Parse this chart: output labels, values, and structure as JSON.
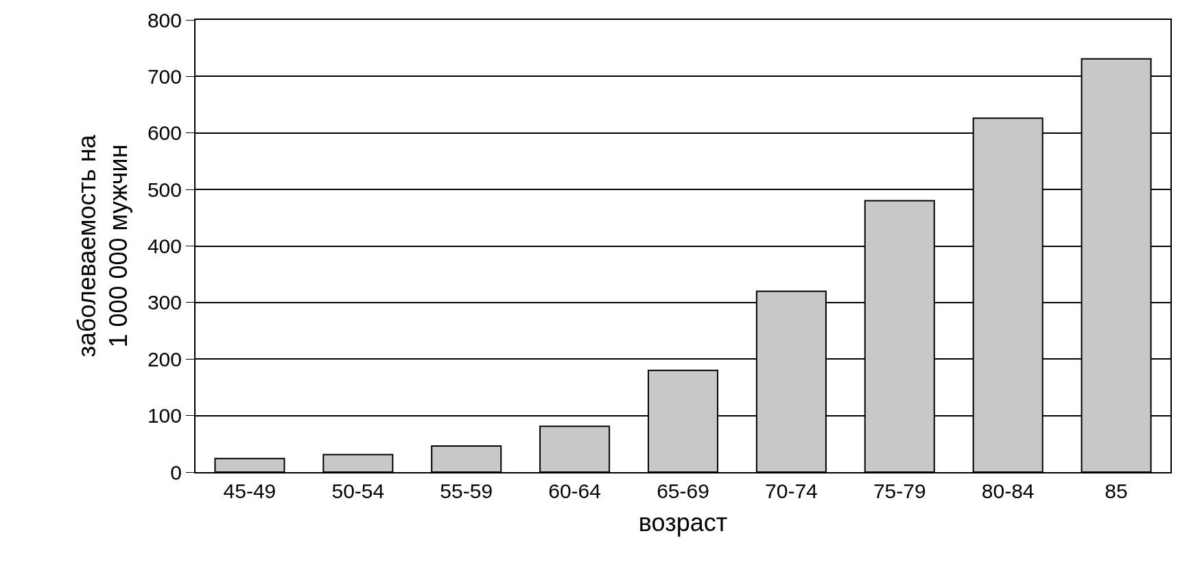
{
  "chart_data": {
    "type": "bar",
    "xlabel": "возраст",
    "ylabel": "заболеваемость на\n1 000 000 мужчин",
    "categories": [
      "45-49",
      "50-54",
      "55-59",
      "60-64",
      "65-69",
      "70-74",
      "75-79",
      "80-84",
      "85"
    ],
    "values": [
      24,
      31,
      46,
      81,
      180,
      320,
      480,
      626,
      731
    ],
    "color": "#c8c8c8",
    "ylim": [
      0,
      800
    ],
    "yticks": [
      0,
      100,
      200,
      300,
      400,
      500,
      600,
      700,
      800
    ],
    "grid": "y"
  }
}
